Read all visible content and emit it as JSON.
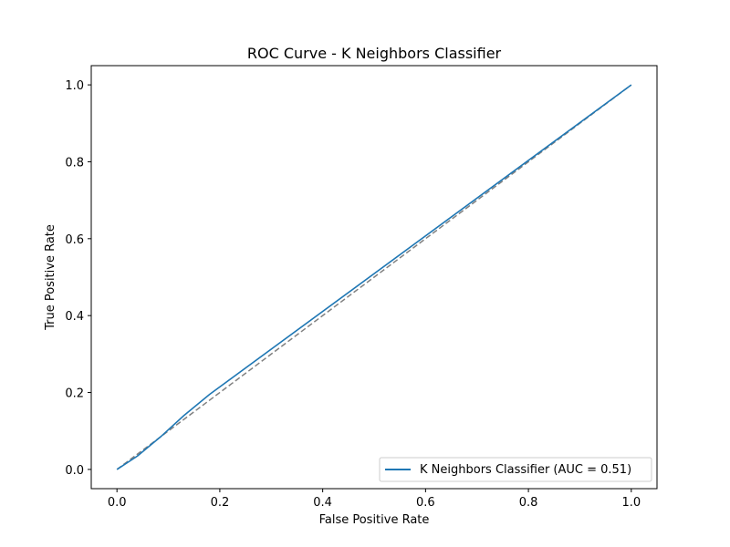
{
  "chart_data": {
    "type": "line",
    "title": "ROC Curve - K Neighbors Classifier",
    "xlabel": "False Positive Rate",
    "ylabel": "True Positive Rate",
    "xlim": [
      -0.05,
      1.05
    ],
    "ylim": [
      -0.05,
      1.05
    ],
    "xticks": [
      "0.0",
      "0.2",
      "0.4",
      "0.6",
      "0.8",
      "1.0"
    ],
    "yticks": [
      "0.0",
      "0.2",
      "0.4",
      "0.6",
      "0.8",
      "1.0"
    ],
    "grid": false,
    "legend_position": "lower-right",
    "series": [
      {
        "name": "K Neighbors Classifier (AUC = 0.51)",
        "color": "#1f77b4",
        "style": "solid",
        "x": [
          0.0,
          0.04,
          0.085,
          0.13,
          0.18,
          1.0
        ],
        "y": [
          0.0,
          0.035,
          0.085,
          0.14,
          0.195,
          1.0
        ]
      },
      {
        "color": "#808080",
        "style": "dashed",
        "x": [
          0.0,
          1.0
        ],
        "y": [
          0.0,
          1.0
        ]
      }
    ]
  }
}
